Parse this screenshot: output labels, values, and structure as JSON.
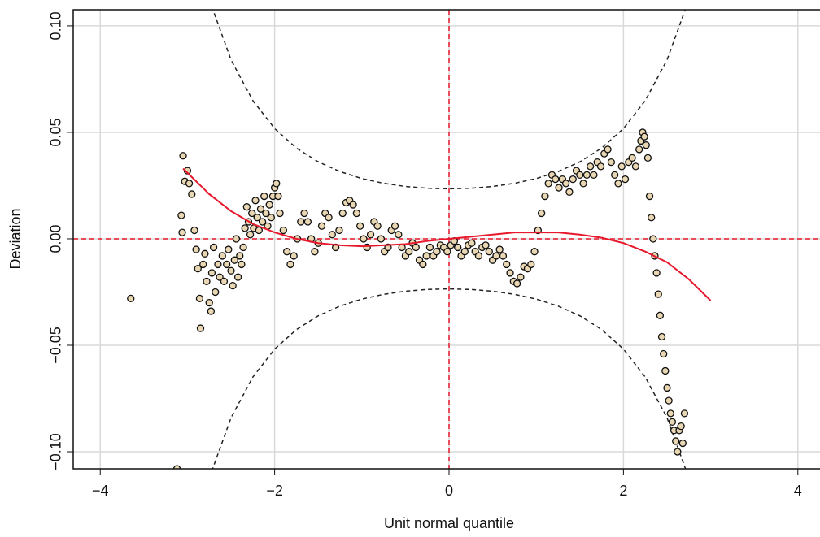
{
  "chart_data": {
    "type": "scatter",
    "x_label": "Unit normal quantile",
    "y_label": "Deviation",
    "xlim": [
      -4.31,
      4.254
    ],
    "ylim": [
      -0.108,
      0.1076
    ],
    "xticks": [
      {
        "value": -4,
        "label": "−4"
      },
      {
        "value": -2,
        "label": "−2"
      },
      0,
      2,
      4
    ],
    "yticks": [
      {
        "value": -0.1,
        "label": "−0.10"
      },
      {
        "value": -0.05,
        "label": "−0.05"
      },
      {
        "value": 0,
        "label": "0.00"
      },
      {
        "value": 0.05,
        "label": "0.05"
      },
      {
        "value": 0.1,
        "label": "0.10"
      }
    ],
    "grid": true,
    "reference_lines": {
      "x": 0,
      "y": 0,
      "color": "#e8182c"
    },
    "points": {
      "color": "#e9d6b2",
      "x": [
        -3.65,
        -3.12,
        -3.05,
        -3.03,
        -3.0,
        -2.98,
        -3.07,
        -2.95,
        -3.06,
        -2.92,
        -2.9,
        -2.88,
        -2.86,
        -2.85,
        -2.82,
        -2.8,
        -2.78,
        -2.75,
        -2.73,
        -2.72,
        -2.7,
        -2.68,
        -2.65,
        -2.63,
        -2.6,
        -2.58,
        -2.55,
        -2.53,
        -2.5,
        -2.48,
        -2.46,
        -2.44,
        -2.42,
        -2.4,
        -2.38,
        -2.36,
        -2.34,
        -2.32,
        -2.3,
        -2.28,
        -2.26,
        -2.24,
        -2.22,
        -2.2,
        -2.18,
        -2.16,
        -2.14,
        -2.12,
        -2.1,
        -2.08,
        -2.06,
        -2.04,
        -2.02,
        -2.0,
        -1.98,
        -1.96,
        -1.94,
        -1.9,
        -1.86,
        -1.82,
        -1.78,
        -1.74,
        -1.7,
        -1.66,
        -1.62,
        -1.58,
        -1.54,
        -1.5,
        -1.46,
        -1.42,
        -1.38,
        -1.34,
        -1.3,
        -1.26,
        -1.22,
        -1.18,
        -1.14,
        -1.1,
        -1.06,
        -1.02,
        -0.98,
        -0.94,
        -0.9,
        -0.86,
        -0.82,
        -0.78,
        -0.74,
        -0.7,
        -0.66,
        -0.62,
        -0.58,
        -0.54,
        -0.5,
        -0.46,
        -0.42,
        -0.38,
        -0.34,
        -0.3,
        -0.26,
        -0.22,
        -0.18,
        -0.14,
        -0.1,
        -0.06,
        -0.02,
        0.02,
        0.06,
        0.1,
        0.14,
        0.18,
        0.22,
        0.26,
        0.3,
        0.34,
        0.38,
        0.42,
        0.46,
        0.5,
        0.54,
        0.58,
        0.62,
        0.66,
        0.7,
        0.74,
        0.78,
        0.82,
        0.86,
        0.9,
        0.94,
        0.98,
        1.02,
        1.06,
        1.1,
        1.14,
        1.18,
        1.22,
        1.26,
        1.3,
        1.34,
        1.38,
        1.42,
        1.46,
        1.5,
        1.54,
        1.58,
        1.62,
        1.66,
        1.7,
        1.74,
        1.78,
        1.82,
        1.86,
        1.9,
        1.94,
        1.98,
        2.02,
        2.06,
        2.1,
        2.14,
        2.18,
        2.2,
        2.22,
        2.24,
        2.26,
        2.28,
        2.3,
        2.32,
        2.34,
        2.36,
        2.38,
        2.4,
        2.42,
        2.44,
        2.46,
        2.48,
        2.5,
        2.52,
        2.54,
        2.56,
        2.58,
        2.6,
        2.62,
        2.64,
        2.66,
        2.68,
        2.7
      ],
      "y": [
        -0.028,
        -0.108,
        0.039,
        0.027,
        0.032,
        0.026,
        0.011,
        0.021,
        0.003,
        0.004,
        -0.005,
        -0.014,
        -0.028,
        -0.042,
        -0.012,
        -0.007,
        -0.02,
        -0.03,
        -0.034,
        -0.016,
        -0.004,
        -0.025,
        -0.012,
        -0.018,
        -0.008,
        -0.02,
        -0.012,
        -0.005,
        -0.015,
        -0.022,
        -0.01,
        0.0,
        -0.018,
        -0.008,
        -0.012,
        -0.004,
        0.005,
        0.015,
        0.008,
        0.002,
        0.012,
        0.005,
        0.018,
        0.01,
        0.004,
        0.014,
        0.008,
        0.02,
        0.012,
        0.006,
        0.016,
        0.01,
        0.02,
        0.024,
        0.026,
        0.02,
        0.012,
        0.004,
        -0.006,
        -0.012,
        -0.008,
        0.0,
        0.008,
        0.012,
        0.008,
        0.0,
        -0.006,
        -0.002,
        0.006,
        0.012,
        0.01,
        0.002,
        -0.004,
        0.004,
        0.012,
        0.017,
        0.018,
        0.016,
        0.012,
        0.006,
        0.0,
        -0.004,
        0.002,
        0.008,
        0.006,
        0.0,
        -0.006,
        -0.004,
        0.004,
        0.006,
        0.002,
        -0.004,
        -0.008,
        -0.006,
        -0.002,
        -0.004,
        -0.01,
        -0.012,
        -0.008,
        -0.004,
        -0.008,
        -0.006,
        -0.003,
        -0.004,
        -0.006,
        -0.003,
        -0.001,
        -0.004,
        -0.008,
        -0.006,
        -0.003,
        -0.002,
        -0.006,
        -0.008,
        -0.004,
        -0.003,
        -0.006,
        -0.01,
        -0.008,
        -0.005,
        -0.008,
        -0.012,
        -0.016,
        -0.02,
        -0.021,
        -0.018,
        -0.013,
        -0.014,
        -0.012,
        -0.006,
        0.004,
        0.012,
        0.02,
        0.026,
        0.03,
        0.028,
        0.024,
        0.028,
        0.026,
        0.022,
        0.028,
        0.032,
        0.03,
        0.026,
        0.03,
        0.034,
        0.03,
        0.036,
        0.034,
        0.04,
        0.042,
        0.036,
        0.03,
        0.026,
        0.034,
        0.028,
        0.036,
        0.038,
        0.034,
        0.042,
        0.046,
        0.05,
        0.048,
        0.044,
        0.038,
        0.02,
        0.01,
        0.0,
        -0.008,
        -0.016,
        -0.026,
        -0.036,
        -0.046,
        -0.054,
        -0.062,
        -0.07,
        -0.076,
        -0.082,
        -0.086,
        -0.09,
        -0.095,
        -0.1,
        -0.09,
        -0.088,
        -0.096,
        -0.082
      ]
    },
    "fit": {
      "color": "#e8182c",
      "x": [
        -3.05,
        -2.75,
        -2.5,
        -2.25,
        -2,
        -1.75,
        -1.5,
        -1.25,
        -1,
        -0.75,
        -0.5,
        -0.25,
        0,
        0.25,
        0.5,
        0.75,
        1,
        1.25,
        1.5,
        1.75,
        2,
        2.25,
        2.5,
        2.75,
        3
      ],
      "y": [
        0.033,
        0.021,
        0.013,
        0.007,
        0.003,
        0.0,
        -0.002,
        -0.003,
        -0.0035,
        -0.003,
        -0.0025,
        -0.001,
        0.0,
        0.001,
        0.002,
        0.003,
        0.003,
        0.003,
        0.002,
        0.0005,
        -0.002,
        -0.006,
        -0.011,
        -0.019,
        -0.029
      ]
    },
    "bands": {
      "color": "#222222",
      "x": [
        -2.75,
        -2.5,
        -2.25,
        -2,
        -1.75,
        -1.5,
        -1.25,
        -1,
        -0.75,
        -0.5,
        -0.25,
        0,
        0.25,
        0.5,
        0.75,
        1,
        1.25,
        1.5,
        1.75,
        2,
        2.25,
        2.5,
        2.75
      ],
      "upper": [
        0.1124,
        0.08403,
        0.06492,
        0.05179,
        0.04262,
        0.03615,
        0.03157,
        0.02831,
        0.02607,
        0.0246,
        0.02377,
        0.0235,
        0.02377,
        0.0246,
        0.02607,
        0.02831,
        0.03157,
        0.03615,
        0.04262,
        0.05179,
        0.06492,
        0.08403,
        0.1124
      ],
      "lower": [
        -0.1124,
        -0.08403,
        -0.06492,
        -0.05179,
        -0.04262,
        -0.03615,
        -0.03157,
        -0.02831,
        -0.02607,
        -0.0246,
        -0.02377,
        -0.0235,
        -0.02377,
        -0.0246,
        -0.02607,
        -0.02831,
        -0.03157,
        -0.03615,
        -0.04262,
        -0.05179,
        -0.06492,
        -0.08403,
        -0.1124
      ]
    }
  }
}
